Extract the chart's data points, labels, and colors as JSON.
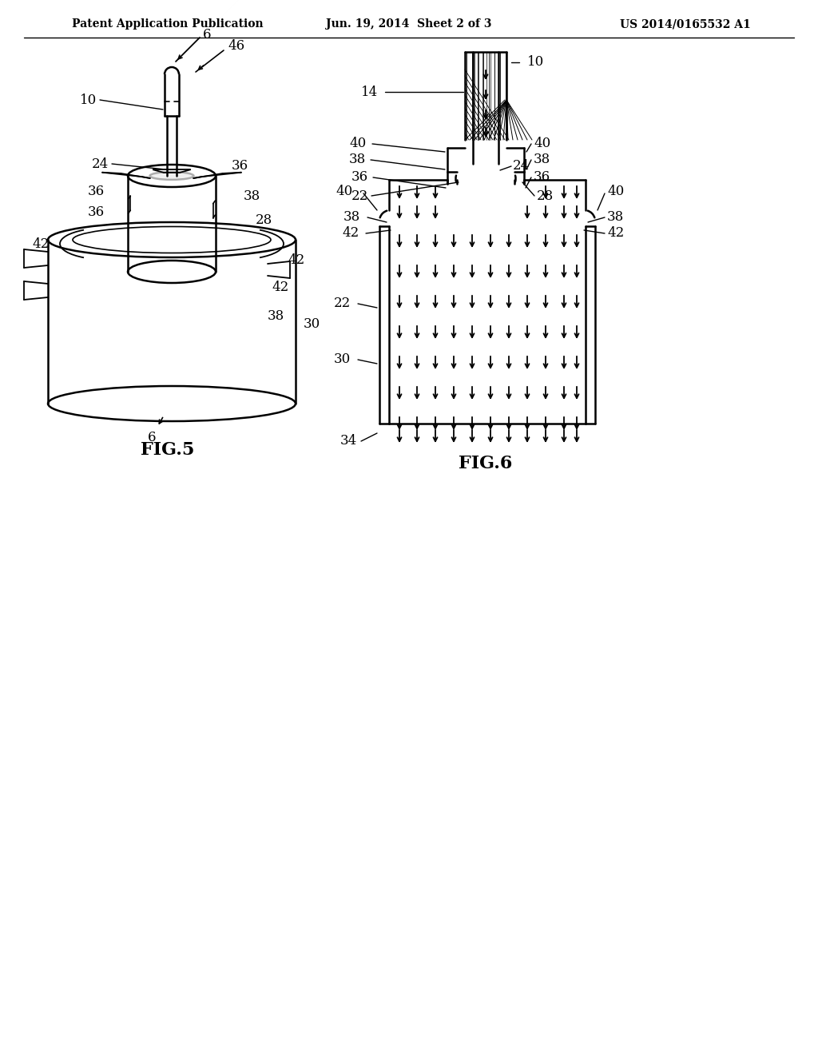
{
  "bg_color": "#ffffff",
  "line_color": "#000000",
  "header_left": "Patent Application Publication",
  "header_center": "Jun. 19, 2014  Sheet 2 of 3",
  "header_right": "US 2014/0165532 A1"
}
